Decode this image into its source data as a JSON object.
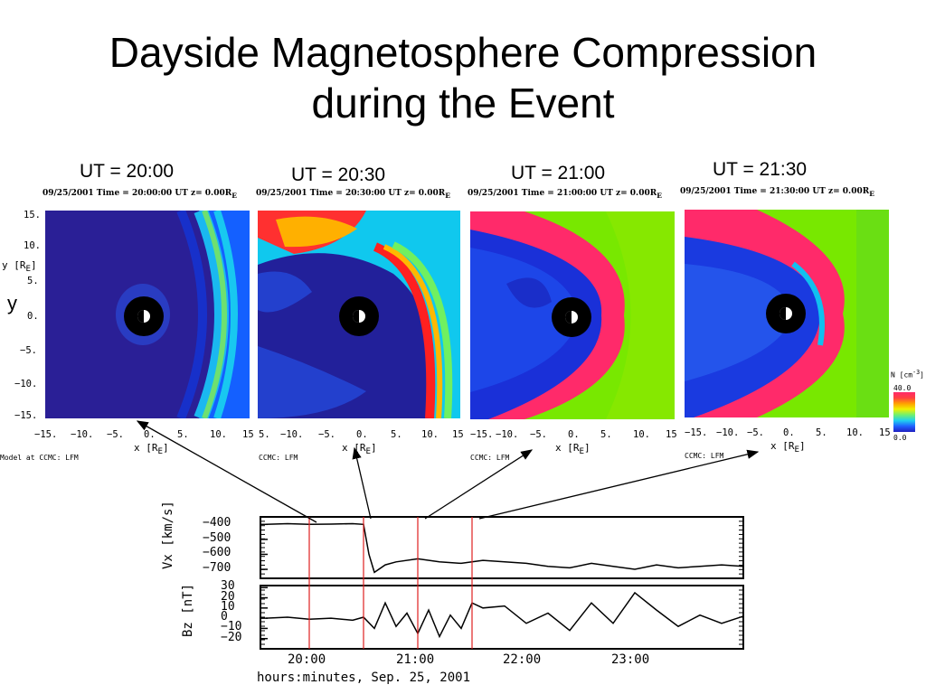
{
  "slide": {
    "title_line1": "Dayside Magnetosphere Compression",
    "title_line2": "during the Event"
  },
  "panels": [
    {
      "ut_label": "UT = 20:00",
      "header": "09/25/2001 Time = 20:00:00 UT z= 0.00R",
      "header_sub": "E"
    },
    {
      "ut_label": "UT = 20:30",
      "header": "09/25/2001 Time = 20:30:00 UT z= 0.00R",
      "header_sub": "E"
    },
    {
      "ut_label": "UT = 21:00",
      "header": "09/25/2001 Time = 21:00:00 UT z= 0.00R",
      "header_sub": "E"
    },
    {
      "ut_label": "UT = 21:30",
      "header": "09/25/2001 Time = 21:30:00 UT z= 0.00R",
      "header_sub": "E"
    }
  ],
  "y_axis": {
    "label": "y [R",
    "label_sub": "E",
    "side_label": "y",
    "ticks": [
      "15.",
      "10.",
      "5.",
      "0.",
      "−5.",
      "−10.",
      "−15."
    ]
  },
  "x_axis": {
    "label": "x [R",
    "label_sub": "E",
    "ticks_first": [
      "−15.",
      "−10.",
      "−5.",
      "0.",
      "5.",
      "10.",
      "15"
    ],
    "ticks_mid": [
      "5.",
      "−10.",
      "−5.",
      "0.",
      "5.",
      "10.",
      "15"
    ],
    "ticks_last": [
      "−15.",
      "−10.",
      "−5.",
      "0.",
      "5.",
      "10.",
      "15"
    ]
  },
  "credits": {
    "first": "Model at CCMC: LFM",
    "other": "CCMC: LFM"
  },
  "colorbar": {
    "title": "N [cm",
    "max_label": "40.0",
    "min_label": "0.0",
    "colors": [
      "#ff2a6a",
      "#ff4040",
      "#ffa000",
      "#f0f000",
      "#70f070",
      "#20d0f0",
      "#2060ff",
      "#2020c0"
    ]
  },
  "chart_data": [
    {
      "type": "line",
      "ylabel": "Vx [km/s]",
      "yticks": [
        "−400",
        "−500",
        "−600",
        "−700"
      ],
      "ylim": [
        -760,
        -350
      ],
      "x": [
        19.6,
        19.8,
        20.0,
        20.2,
        20.4,
        20.5,
        20.55,
        20.6,
        20.7,
        20.8,
        21.0,
        21.2,
        21.4,
        21.6,
        21.8,
        22.0,
        22.2,
        22.4,
        22.6,
        22.8,
        23.0,
        23.2,
        23.4,
        23.6,
        23.8,
        24.0
      ],
      "values": [
        -400,
        -395,
        -400,
        -398,
        -395,
        -400,
        -600,
        -720,
        -670,
        -650,
        -630,
        -650,
        -660,
        -640,
        -650,
        -660,
        -680,
        -690,
        -660,
        -680,
        -700,
        -670,
        -690,
        -680,
        -670,
        -680
      ]
    },
    {
      "type": "line",
      "ylabel": "Bz [nT]",
      "yticks": [
        "30",
        "20",
        "10",
        "0",
        "−10",
        "−20"
      ],
      "ylim": [
        -30,
        32
      ],
      "x": [
        19.6,
        19.8,
        20.0,
        20.2,
        20.4,
        20.5,
        20.6,
        20.7,
        20.8,
        20.9,
        21.0,
        21.1,
        21.2,
        21.3,
        21.4,
        21.5,
        21.6,
        21.8,
        22.0,
        22.2,
        22.4,
        22.6,
        22.8,
        23.0,
        23.2,
        23.4,
        23.6,
        23.8,
        24.0
      ],
      "values": [
        0,
        1,
        -1,
        0,
        -2,
        1,
        -10,
        15,
        -8,
        5,
        -15,
        8,
        -18,
        3,
        -10,
        15,
        10,
        12,
        -5,
        5,
        -12,
        15,
        -5,
        25,
        8,
        -8,
        3,
        -5,
        2
      ]
    }
  ],
  "time_axis": {
    "ticks": [
      "20:00",
      "21:00",
      "22:00",
      "23:00"
    ],
    "label": "hours:minutes, Sep. 25, 2001"
  }
}
